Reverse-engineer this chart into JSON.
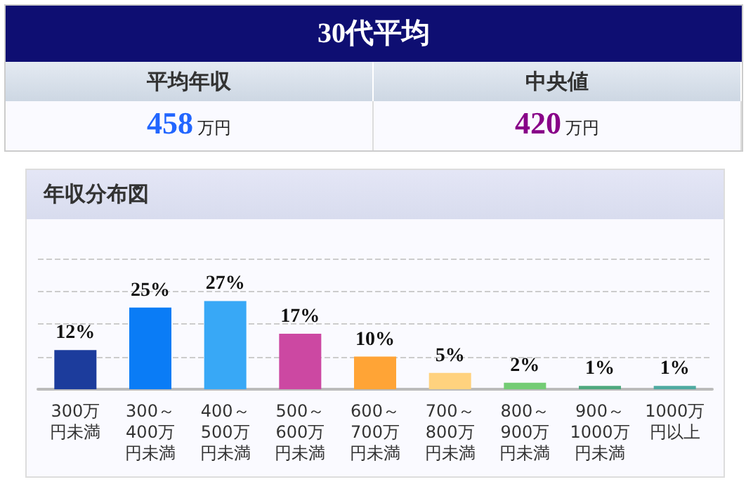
{
  "chart_data": {
    "type": "bar",
    "title": "30代平均",
    "subtitle": "年収分布図",
    "annotations": [
      "平均年収",
      "458万円",
      "中央値",
      "420万円"
    ],
    "categories": [
      "300万円未満",
      "300～400万円未満",
      "400～500万円未満",
      "500～600万円未満",
      "600～700万円未満",
      "700～800万円未満",
      "800～900万円未満",
      "900～1000万円未満",
      "1000万円以上"
    ],
    "values": [
      12,
      25,
      27,
      17,
      10,
      5,
      2,
      1,
      1
    ],
    "value_labels": [
      "12%",
      "25%",
      "27%",
      "17%",
      "10%",
      "5%",
      "2%",
      "1%",
      "1%"
    ],
    "colors": [
      "#1c3c9c",
      "#0a7cf6",
      "#38a8f6",
      "#cc48a2",
      "#ffa436",
      "#ffd27e",
      "#74cc74",
      "#4ea87e",
      "#4eaaa0"
    ],
    "ylim": [
      0,
      40
    ],
    "yticks": [
      {
        "value": 10,
        "label": null
      },
      {
        "value": 20,
        "label": null
      },
      {
        "value": 30,
        "label": null
      },
      {
        "value": 40,
        "label": null
      }
    ],
    "grid": "y",
    "tick_labels": "x"
  }
}
